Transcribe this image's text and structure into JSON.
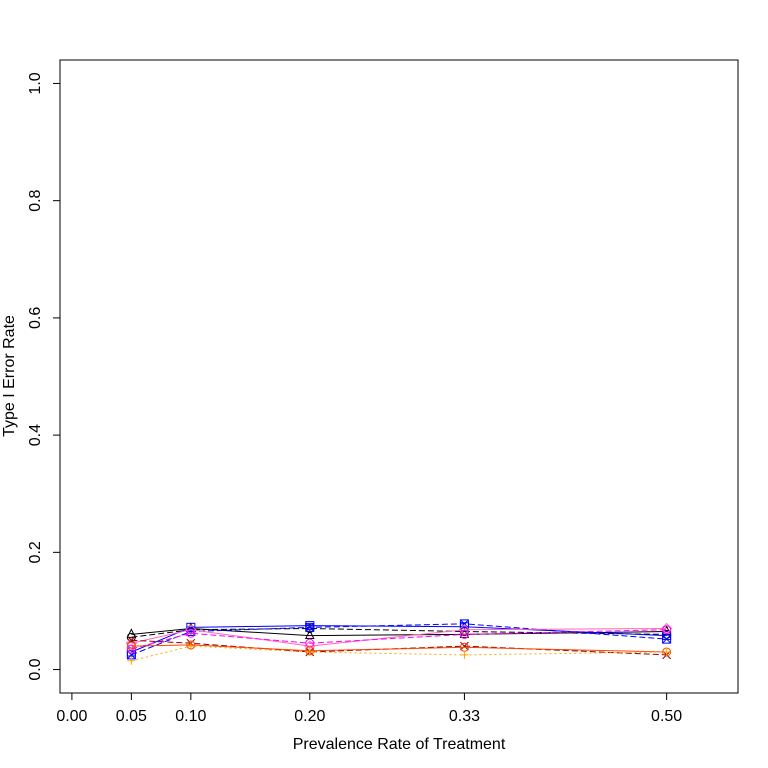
{
  "chart_data": {
    "type": "line",
    "title": "",
    "xlabel": "Prevalence Rate of Treatment",
    "ylabel": "Type I Error Rate",
    "x": [
      0.05,
      0.1,
      0.2,
      0.33,
      0.5
    ],
    "xticks": [
      0.0,
      0.05,
      0.1,
      0.2,
      0.33,
      0.5
    ],
    "xtick_labels": [
      "0.00",
      "0.05",
      "0.10",
      "0.20",
      "0.33",
      "0.50"
    ],
    "xlim": [
      -0.01,
      0.56
    ],
    "yticks": [
      0.0,
      0.2,
      0.4,
      0.6,
      0.8,
      1.0
    ],
    "ytick_labels": [
      "0.0",
      "0.2",
      "0.4",
      "0.6",
      "0.8",
      "1.0"
    ],
    "ylim": [
      -0.04,
      1.04
    ],
    "grid": false,
    "series": [
      {
        "values": [
          0.06,
          0.07,
          0.058,
          0.06,
          0.065
        ],
        "color": "#000000",
        "dash": "solid",
        "marker": "triangle"
      },
      {
        "values": [
          0.055,
          0.068,
          0.07,
          0.065,
          0.06
        ],
        "color": "#000000",
        "dash": "dashed",
        "marker": "circle"
      },
      {
        "values": [
          0.03,
          0.072,
          0.075,
          0.073,
          0.058
        ],
        "color": "#0000ff",
        "dash": "solid",
        "marker": "square"
      },
      {
        "values": [
          0.025,
          0.065,
          0.072,
          0.078,
          0.052
        ],
        "color": "#0000ff",
        "dash": "dashed",
        "marker": "square-x"
      },
      {
        "values": [
          0.045,
          0.068,
          0.04,
          0.068,
          0.07
        ],
        "color": "#ff69b4",
        "dash": "solid",
        "marker": "diamond"
      },
      {
        "values": [
          0.035,
          0.062,
          0.045,
          0.06,
          0.068
        ],
        "color": "#ff00ff",
        "dash": "dashed",
        "marker": "circle"
      },
      {
        "values": [
          0.05,
          0.045,
          0.03,
          0.04,
          0.025
        ],
        "color": "#8b0000",
        "dash": "dashed",
        "marker": "x"
      },
      {
        "values": [
          0.04,
          0.042,
          0.032,
          0.038,
          0.03
        ],
        "color": "#ff4500",
        "dash": "solid",
        "marker": "circle"
      },
      {
        "values": [
          0.015,
          0.04,
          0.03,
          0.025,
          0.03
        ],
        "color": "#ffa500",
        "dash": "dotted",
        "marker": "plus"
      }
    ]
  }
}
